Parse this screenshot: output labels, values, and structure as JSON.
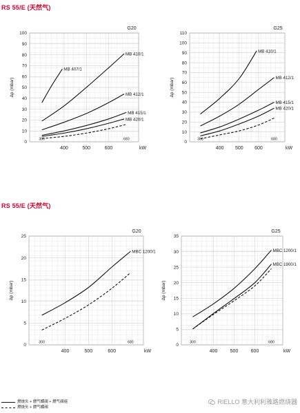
{
  "sections": [
    {
      "title": "RS 55/E (天然气)"
    },
    {
      "title": "RS 55/E (天然气)"
    }
  ],
  "legend": {
    "solid": "燃烧头 + 燃气蝶阀 + 燃气阀组",
    "dashed": "燃烧头 + 燃气蝶阀"
  },
  "watermark": {
    "text": "RIELLO 意大利利雅路燃烧器",
    "icon": "wechat-icon"
  },
  "chart_data": [
    {
      "type": "line",
      "gas_label": "G20",
      "xlabel": "kW",
      "ylabel": "Δp (mbar)",
      "xlim": [
        245,
        735
      ],
      "ylim": [
        0,
        100
      ],
      "xticks": [
        400,
        500,
        600
      ],
      "yticks": [
        0,
        10,
        20,
        30,
        40,
        50,
        60,
        70,
        80,
        90,
        100
      ],
      "range_labels": [
        "300",
        "680"
      ],
      "grid": true,
      "series": [
        {
          "name": "MB 407/1",
          "style": "solid",
          "points": [
            [
              300,
              36
            ],
            [
              345,
              52
            ],
            [
              392,
              67
            ]
          ]
        },
        {
          "name": "MB 410/1",
          "style": "solid",
          "points": [
            [
              300,
              19
            ],
            [
              400,
              33
            ],
            [
              500,
              50
            ],
            [
              600,
              68
            ],
            [
              670,
              81
            ]
          ]
        },
        {
          "name": "MB 412/1",
          "style": "solid",
          "points": [
            [
              300,
              11
            ],
            [
              400,
              18
            ],
            [
              500,
              26
            ],
            [
              600,
              36
            ],
            [
              670,
              44
            ]
          ]
        },
        {
          "name": "MB 415/1",
          "style": "solid",
          "points": [
            [
              300,
              6
            ],
            [
              400,
              10
            ],
            [
              500,
              15
            ],
            [
              600,
              21
            ],
            [
              680,
              27
            ]
          ]
        },
        {
          "name": "MB 420/1",
          "style": "solid",
          "points": [
            [
              300,
              5
            ],
            [
              400,
              8
            ],
            [
              500,
              12
            ],
            [
              600,
              17
            ],
            [
              670,
              21
            ]
          ]
        },
        {
          "name": "",
          "style": "dashed",
          "points": [
            [
              300,
              3
            ],
            [
              400,
              5
            ],
            [
              500,
              8
            ],
            [
              600,
              12
            ],
            [
              680,
              16
            ]
          ]
        }
      ]
    },
    {
      "type": "line",
      "gas_label": "G25",
      "xlabel": "kW",
      "ylabel": "Δp (mbar)",
      "xlim": [
        245,
        735
      ],
      "ylim": [
        0,
        110
      ],
      "xticks": [
        400,
        500,
        600
      ],
      "yticks": [
        0,
        10,
        20,
        30,
        40,
        50,
        60,
        70,
        80,
        90,
        100,
        110
      ],
      "range_labels": [
        "300",
        "680"
      ],
      "grid": true,
      "series": [
        {
          "name": "MB 410/1",
          "style": "solid",
          "points": [
            [
              300,
              28
            ],
            [
              400,
              44
            ],
            [
              500,
              64
            ],
            [
              590,
              92
            ]
          ]
        },
        {
          "name": "MB 412/1",
          "style": "solid",
          "points": [
            [
              300,
              16
            ],
            [
              400,
              26
            ],
            [
              500,
              38
            ],
            [
              600,
              53
            ],
            [
              680,
              65
            ]
          ]
        },
        {
          "name": "MB 415/1",
          "style": "solid",
          "points": [
            [
              300,
              9
            ],
            [
              400,
              15
            ],
            [
              500,
              23
            ],
            [
              600,
              32
            ],
            [
              680,
              40
            ]
          ]
        },
        {
          "name": "MB 420/1",
          "style": "solid",
          "points": [
            [
              300,
              6
            ],
            [
              400,
              11
            ],
            [
              500,
              18
            ],
            [
              600,
              26
            ],
            [
              680,
              34
            ]
          ]
        },
        {
          "name": "",
          "style": "dashed",
          "points": [
            [
              300,
              3
            ],
            [
              400,
              7
            ],
            [
              500,
              11
            ],
            [
              600,
              17
            ],
            [
              680,
              24
            ]
          ]
        }
      ]
    },
    {
      "type": "line",
      "gas_label": "G20",
      "xlabel": "kW",
      "ylabel": "Δp (mbar)",
      "xlim": [
        245,
        735
      ],
      "ylim": [
        0,
        25
      ],
      "xticks": [
        400,
        500,
        600
      ],
      "yticks": [
        0,
        5,
        10,
        15,
        20,
        25
      ],
      "range_labels": [
        "300",
        "680"
      ],
      "grid": true,
      "series": [
        {
          "name": "MBC 1200/1",
          "style": "solid",
          "points": [
            [
              300,
              6.8
            ],
            [
              400,
              9.7
            ],
            [
              500,
              13.2
            ],
            [
              600,
              17.9
            ],
            [
              680,
              21.5
            ]
          ]
        },
        {
          "name": "",
          "style": "dashed",
          "points": [
            [
              300,
              3.4
            ],
            [
              400,
              6.1
            ],
            [
              500,
              9.2
            ],
            [
              600,
              13.0
            ],
            [
              680,
              16.6
            ]
          ]
        }
      ]
    },
    {
      "type": "line",
      "gas_label": "G25",
      "xlabel": "kW",
      "ylabel": "Δp (mbar)",
      "xlim": [
        245,
        735
      ],
      "ylim": [
        0,
        35
      ],
      "xticks": [
        400,
        500,
        600
      ],
      "yticks": [
        0,
        5,
        10,
        15,
        20,
        25,
        30,
        35
      ],
      "range_labels": [
        "300",
        "680"
      ],
      "grid": true,
      "series": [
        {
          "name": "MBC 1200/1",
          "style": "solid",
          "points": [
            [
              300,
              9.0
            ],
            [
              400,
              13.2
            ],
            [
              500,
              18.2
            ],
            [
              600,
              24.5
            ],
            [
              680,
              30.5
            ]
          ]
        },
        {
          "name": "MBC 1900/1",
          "style": "solid",
          "points": [
            [
              300,
              5.1
            ],
            [
              400,
              10.1
            ],
            [
              500,
              14.9
            ],
            [
              600,
              20.0
            ],
            [
              680,
              26.0
            ]
          ]
        },
        {
          "name": "",
          "style": "dashed",
          "points": [
            [
              300,
              5.1
            ],
            [
              400,
              9.8
            ],
            [
              500,
              14.2
            ],
            [
              600,
              19.0
            ],
            [
              680,
              24.5
            ]
          ]
        }
      ]
    }
  ]
}
